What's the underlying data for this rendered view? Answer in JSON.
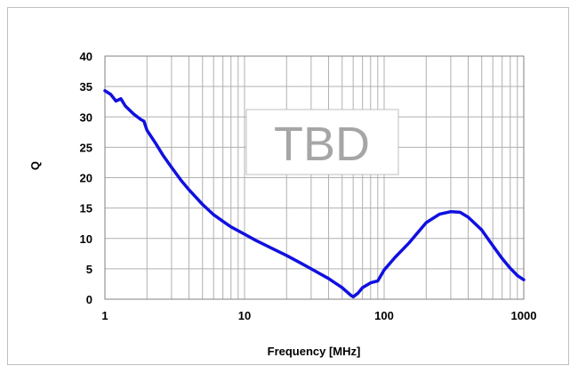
{
  "chart_data": {
    "type": "line",
    "title": "",
    "xlabel": "Frequency [MHz]",
    "ylabel": "Q",
    "xscale": "log",
    "xlim": [
      1,
      1000
    ],
    "ylim": [
      0,
      40
    ],
    "xticks": [
      "1",
      "10",
      "100",
      "1000"
    ],
    "yticks": [
      "0",
      "5",
      "10",
      "15",
      "20",
      "25",
      "30",
      "35",
      "40"
    ],
    "grid": true,
    "annotation": "TBD",
    "series_color": "#1010e0",
    "series": [
      {
        "x": [
          1,
          1.1,
          1.2,
          1.3,
          1.4,
          1.6,
          1.8,
          1.9,
          2.0,
          2.3,
          2.6,
          3,
          3.5,
          4,
          5,
          6,
          7,
          8,
          10,
          12,
          15,
          20,
          25,
          30,
          40,
          50,
          58,
          60,
          65,
          70,
          80,
          90,
          100,
          120,
          150,
          200,
          250,
          300,
          350,
          400,
          500,
          600,
          700,
          800,
          900,
          1000
        ],
        "y": [
          34.3,
          33.7,
          32.6,
          33.0,
          31.8,
          30.5,
          29.6,
          29.3,
          27.8,
          25.7,
          23.7,
          21.7,
          19.6,
          18.0,
          15.6,
          13.9,
          12.8,
          11.9,
          10.7,
          9.7,
          8.6,
          7.2,
          6.0,
          5.0,
          3.4,
          1.9,
          0.6,
          0.4,
          1.0,
          1.9,
          2.7,
          3.0,
          4.8,
          6.9,
          9.2,
          12.6,
          14.0,
          14.4,
          14.3,
          13.5,
          11.4,
          8.8,
          6.7,
          5.1,
          3.9,
          3.2
        ]
      }
    ]
  }
}
